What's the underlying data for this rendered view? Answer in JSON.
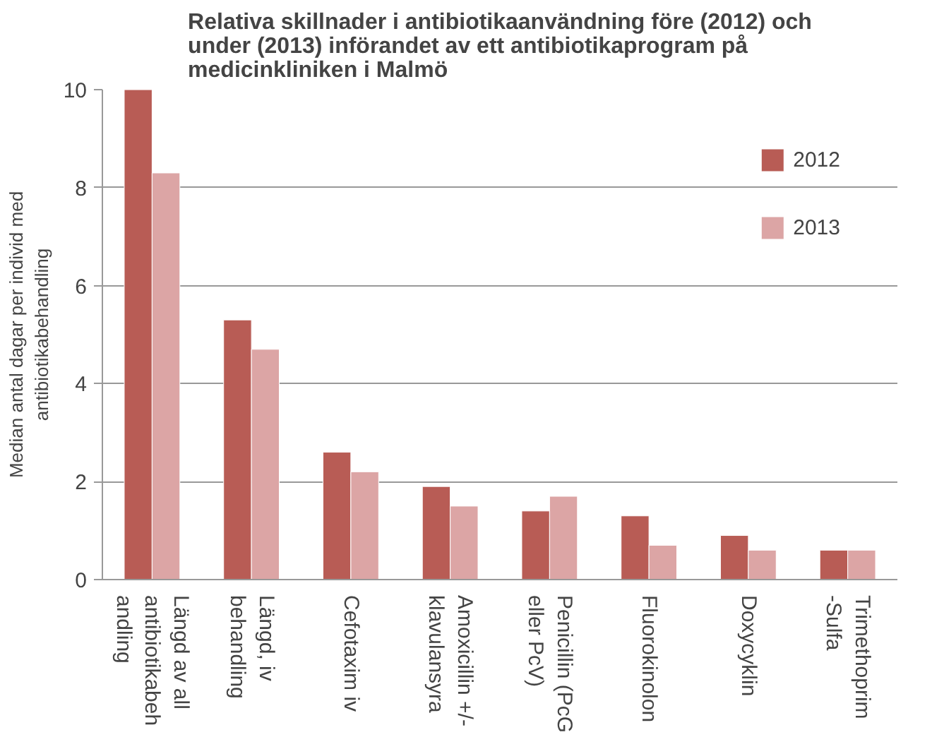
{
  "chart_data": {
    "type": "bar",
    "title": "Relativa skillnader i antibiotikaanvändning före (2012) och\nunder (2013) införandet av ett antibiotikaprogram på\nmedicinkliniken i Malmö",
    "ylabel": "Median antal dagar per individ med\nantibiotikabehandling",
    "categories": [
      "Längd av all\nantibiotikabeh\nandling",
      "Längd, iv\nbehandling",
      "Cefotaxim iv",
      "Amoxicillin +/-\nklavulansyra",
      "Penicillin (PcG\neller PcV)",
      "Fluorokinolon",
      "Doxycyklin",
      "Trimethoprim\n-Sulfa"
    ],
    "series": [
      {
        "name": "2012",
        "color": "#b85c55",
        "values": [
          10,
          5.3,
          2.6,
          1.9,
          1.4,
          1.3,
          0.9,
          0.6
        ]
      },
      {
        "name": "2013",
        "color": "#dca5a5",
        "values": [
          8.3,
          4.7,
          2.2,
          1.5,
          1.7,
          0.7,
          0.6,
          0.6
        ]
      }
    ],
    "ylim": [
      0,
      10
    ],
    "yticks": [
      0,
      2,
      4,
      6,
      8,
      10
    ],
    "grid": "y",
    "legend": "top right"
  }
}
